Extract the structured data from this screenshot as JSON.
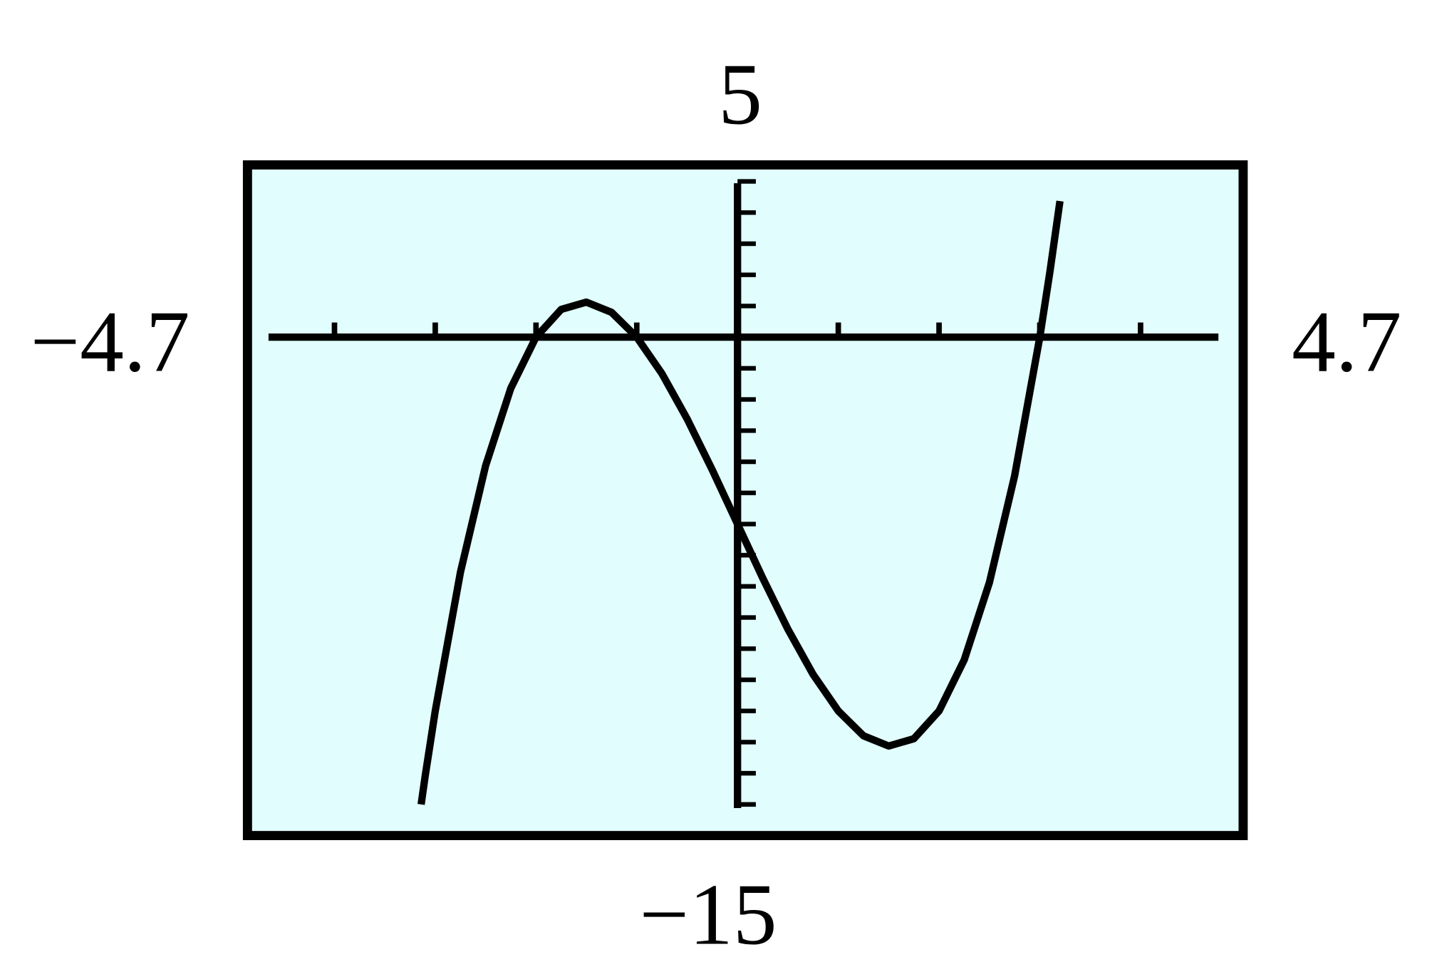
{
  "chart_data": {
    "type": "line",
    "window_labels": {
      "ymax": "5",
      "ymin": "−15",
      "xmin": "−4.7",
      "xmax": "4.7"
    },
    "xlim": [
      -4.7,
      4.7
    ],
    "ylim": [
      -15,
      5
    ],
    "xscale": 1,
    "yscale": 1,
    "grid": false,
    "series": [
      {
        "x": [
          -3.14,
          -3.1,
          -3,
          -2.75,
          -2.5,
          -2.25,
          -2,
          -1.75,
          -1.5,
          -1.25,
          -1,
          -0.75,
          -0.5,
          -0.25,
          0,
          0.25,
          0.5,
          0.75,
          1,
          1.25,
          1.5,
          1.75,
          2,
          2.25,
          2.5,
          2.75,
          3,
          3.1,
          3.2
        ],
        "y": [
          -15,
          -14.09,
          -12,
          -7.547,
          -4.125,
          -1.64,
          0,
          0.891,
          1.125,
          0.797,
          0,
          -1.172,
          -2.625,
          -4.266,
          -6,
          -7.734,
          -9.375,
          -10.828,
          -12,
          -12.797,
          -13.125,
          -12.891,
          -12,
          -10.36,
          -7.875,
          -4.453,
          0,
          2.091,
          4.368
        ]
      }
    ],
    "colors": {
      "plot_background": "#e1fdfd",
      "ink": "#000000"
    }
  }
}
